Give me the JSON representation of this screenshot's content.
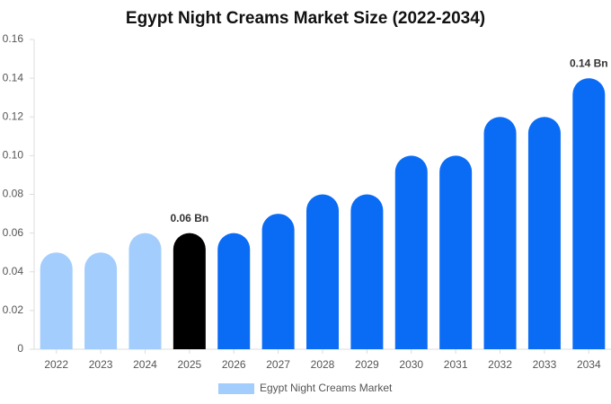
{
  "chart_data": {
    "type": "bar",
    "title": "Egypt Night Creams Market Size (2022-2034)",
    "categories": [
      "2022",
      "2023",
      "2024",
      "2025",
      "2026",
      "2027",
      "2028",
      "2029",
      "2030",
      "2031",
      "2032",
      "2033",
      "2034"
    ],
    "series": [
      {
        "name": "Egypt Night Creams Market",
        "color": "#a3cdfd",
        "values": [
          0.05,
          0.05,
          0.06,
          0.06,
          0.06,
          0.07,
          0.08,
          0.08,
          0.1,
          0.1,
          0.12,
          0.12,
          0.14
        ],
        "value_labels": [
          null,
          null,
          null,
          "0.06 Bn",
          null,
          null,
          null,
          null,
          null,
          null,
          null,
          null,
          "0.14 Bn"
        ],
        "colors": [
          "#a3cdfd",
          "#a3cdfd",
          "#a3cdfd",
          "#000000",
          "#0a6cf5",
          "#0a6cf5",
          "#0a6cf5",
          "#0a6cf5",
          "#0a6cf5",
          "#0a6cf5",
          "#0a6cf5",
          "#0a6cf5",
          "#0a6cf5"
        ]
      }
    ],
    "ylim": [
      0,
      0.16
    ],
    "yticks": [
      0,
      0.02,
      0.04,
      0.06,
      0.08,
      {
        "value": 0.1,
        "label": "0.10"
      },
      0.12,
      0.14,
      0.16
    ],
    "legend": "bottom"
  }
}
